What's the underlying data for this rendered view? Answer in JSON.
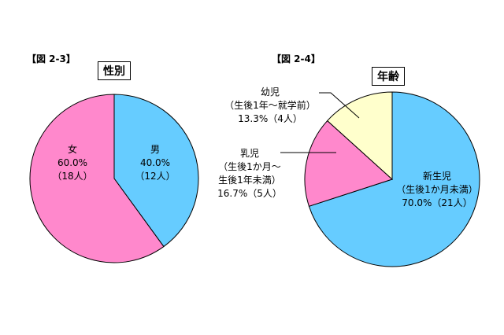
{
  "chart_data": [
    {
      "type": "pie",
      "figure_label": "【図 2-3】",
      "title": "性別",
      "colors": [
        "#66ccff",
        "#ff88cc"
      ],
      "slices": [
        {
          "label_lines": [
            "男"
          ],
          "value_text": "40.0%",
          "count_text": "（12人）",
          "value": 40.0
        },
        {
          "label_lines": [
            "女"
          ],
          "value_text": "60.0%",
          "count_text": "（18人）",
          "value": 60.0
        }
      ]
    },
    {
      "type": "pie",
      "figure_label": "【図 2-4】",
      "title": "年齢",
      "colors": [
        "#66ccff",
        "#ff88cc",
        "#ffffcc"
      ],
      "slices": [
        {
          "label_lines": [
            "新生児",
            "（生後1か月未満）"
          ],
          "value_text": "70.0%（21人）",
          "value": 70.0
        },
        {
          "label_lines": [
            "乳児",
            "（生後1か月～",
            "生後1年未満）"
          ],
          "value_text": "16.7%（5人）",
          "value": 16.7
        },
        {
          "label_lines": [
            "幼児",
            "（生後1年～就学前）"
          ],
          "value_text": "13.3%（4人）",
          "value": 13.3
        }
      ]
    }
  ]
}
